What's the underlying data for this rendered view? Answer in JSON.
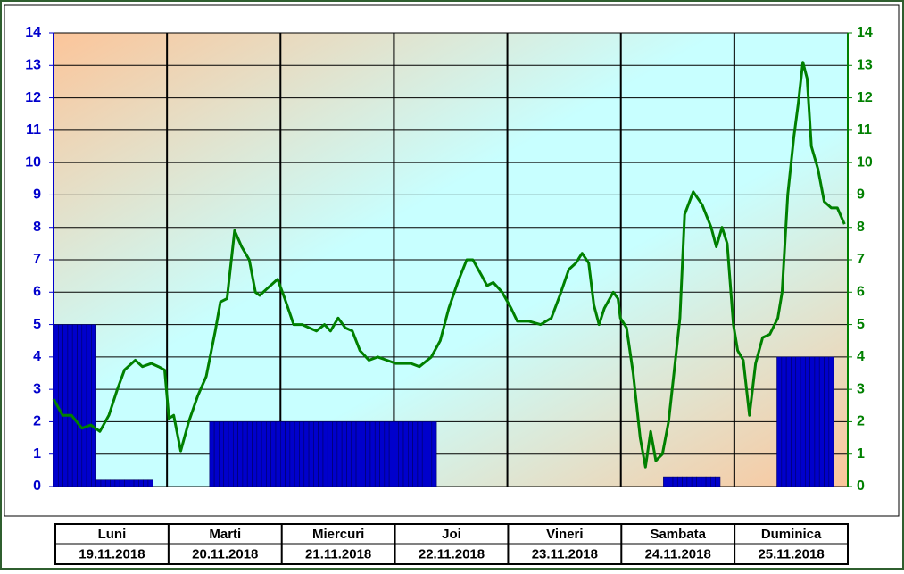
{
  "chart_data": {
    "type": "bar_line",
    "xlim": [
      0,
      168
    ],
    "day_lines": [
      24,
      48,
      72,
      96,
      120,
      144
    ],
    "ylim": [
      0,
      14
    ],
    "yticks": [
      0,
      1,
      2,
      3,
      4,
      5,
      6,
      7,
      8,
      9,
      10,
      11,
      12,
      13,
      14
    ],
    "y_color": "#0000cc",
    "y2lim": [
      0,
      14
    ],
    "y2ticks": [
      0,
      1,
      2,
      3,
      4,
      5,
      6,
      7,
      8,
      9,
      10,
      11,
      12,
      13,
      14
    ],
    "y2_color": "#008000",
    "grid": true,
    "series": [
      {
        "type": "bar",
        "color": "#0000cc",
        "x": [
          0,
          1,
          2,
          3,
          4,
          5,
          6,
          7,
          8,
          9,
          10,
          11,
          12,
          13,
          14,
          15,
          16,
          17,
          18,
          19,
          20,
          33,
          34,
          35,
          36,
          37,
          38,
          39,
          40,
          41,
          42,
          43,
          44,
          45,
          46,
          47,
          48,
          49,
          50,
          51,
          52,
          53,
          54,
          55,
          56,
          57,
          58,
          59,
          60,
          61,
          62,
          63,
          64,
          65,
          66,
          67,
          68,
          69,
          70,
          71,
          72,
          73,
          74,
          75,
          76,
          77,
          78,
          79,
          80,
          129,
          130,
          131,
          132,
          133,
          134,
          135,
          136,
          137,
          138,
          139,
          140,
          153,
          154,
          155,
          156,
          157,
          158,
          159,
          160,
          161,
          162,
          163,
          164
        ],
        "values": [
          5,
          5,
          5,
          5,
          5,
          5,
          5,
          5,
          5,
          0.2,
          0.2,
          0.2,
          0.2,
          0.2,
          0.2,
          0.2,
          0.2,
          0.2,
          0.2,
          0.2,
          0.2,
          2,
          2,
          2,
          2,
          2,
          2,
          2,
          2,
          2,
          2,
          2,
          2,
          2,
          2,
          2,
          2,
          2,
          2,
          2,
          2,
          2,
          2,
          2,
          2,
          2,
          2,
          2,
          2,
          2,
          2,
          2,
          2,
          2,
          2,
          2,
          2,
          2,
          2,
          2,
          2,
          2,
          2,
          2,
          2,
          2,
          2,
          2,
          2,
          0.3,
          0.3,
          0.3,
          0.3,
          0.3,
          0.3,
          0.3,
          0.3,
          0.3,
          0.3,
          0.3,
          0.3,
          4,
          4,
          4,
          4,
          4,
          4,
          4,
          4,
          4,
          4,
          4,
          4
        ]
      },
      {
        "type": "line",
        "axis": "y2",
        "color": "#008000",
        "x": [
          0,
          1.9,
          3.8,
          6,
          7.9,
          9.8,
          11.7,
          13.5,
          15,
          17.3,
          18.8,
          20.7,
          22.2,
          23.5,
          24.4,
          25.4,
          26.9,
          28.6,
          30.5,
          32.3,
          34.2,
          35.3,
          36.7,
          38.3,
          39.8,
          41.4,
          42.7,
          43.6,
          45.1,
          47.4,
          48.9,
          50.8,
          52.6,
          54.1,
          55.6,
          57.3,
          58.6,
          60.2,
          61.7,
          63.2,
          64.8,
          66.7,
          68.6,
          70.5,
          72.4,
          75.6,
          77.4,
          79.9,
          81.8,
          83.6,
          85.5,
          87.4,
          88.7,
          90.6,
          91.7,
          93,
          94.9,
          96.8,
          98.1,
          100.6,
          103,
          105.3,
          107.1,
          109,
          110.5,
          111.8,
          113.2,
          114.3,
          115.4,
          116.5,
          118.4,
          119.4,
          119.9,
          121.2,
          122.6,
          124.1,
          125.2,
          126.3,
          127.4,
          128.8,
          130.1,
          131.6,
          132.5,
          133.5,
          135.3,
          137.2,
          139.1,
          140.2,
          141.4,
          142.5,
          143.8,
          144.7,
          145.9,
          147.2,
          148.5,
          150,
          151.5,
          153.2,
          154.1,
          155.3,
          156.6,
          157.5,
          158.5,
          159.4,
          160.3,
          161.7,
          163,
          164.5,
          165.8,
          167.3
        ],
        "values": [
          2.7,
          2.2,
          2.2,
          1.8,
          1.9,
          1.7,
          2.2,
          3.0,
          3.6,
          3.9,
          3.7,
          3.8,
          3.7,
          3.6,
          2.1,
          2.2,
          1.1,
          2.0,
          2.8,
          3.4,
          4.8,
          5.7,
          5.8,
          7.9,
          7.4,
          7.0,
          6.0,
          5.9,
          6.1,
          6.4,
          5.8,
          5.0,
          5.0,
          4.9,
          4.8,
          5.0,
          4.8,
          5.2,
          4.9,
          4.8,
          4.2,
          3.9,
          4.0,
          3.9,
          3.8,
          3.8,
          3.7,
          4.0,
          4.5,
          5.5,
          6.3,
          7.0,
          7.0,
          6.5,
          6.2,
          6.3,
          6.0,
          5.5,
          5.1,
          5.1,
          5.0,
          5.2,
          5.9,
          6.7,
          6.9,
          7.2,
          6.9,
          5.6,
          5.0,
          5.5,
          6.0,
          5.8,
          5.2,
          4.9,
          3.5,
          1.5,
          0.6,
          1.7,
          0.8,
          1.0,
          2.0,
          4.0,
          5.2,
          8.4,
          9.1,
          8.7,
          8.0,
          7.4,
          8.0,
          7.5,
          5.0,
          4.2,
          3.9,
          2.2,
          3.8,
          4.6,
          4.7,
          5.2,
          6.0,
          9.0,
          10.8,
          11.8,
          13.1,
          12.6,
          10.5,
          9.8,
          8.8,
          8.6,
          8.6,
          8.1
        ]
      }
    ],
    "day_names": [
      "Luni",
      "Marti",
      "Miercuri",
      "Joi",
      "Vineri",
      "Sambata",
      "Duminica"
    ],
    "dates": [
      "19.11.2018",
      "20.11.2018",
      "21.11.2018",
      "22.11.2018",
      "23.11.2018",
      "24.11.2018",
      "25.11.2018"
    ]
  }
}
